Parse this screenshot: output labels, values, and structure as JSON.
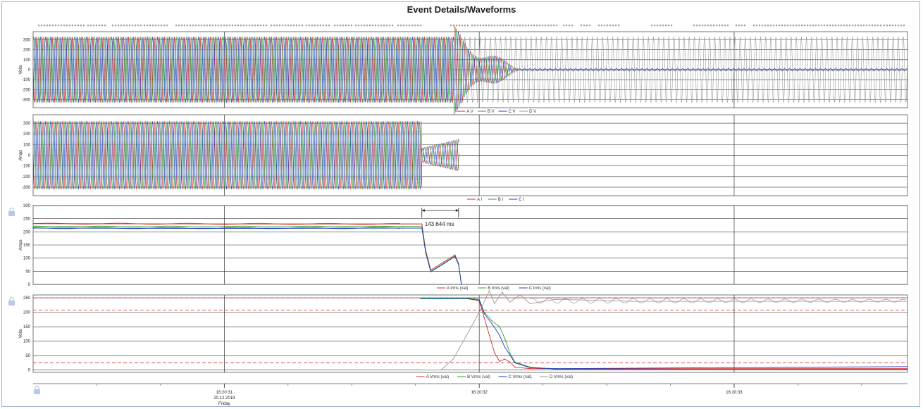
{
  "title": "Event Details/Waveforms",
  "colors": {
    "A": "#d62728",
    "B": "#2ca02c",
    "C": "#1f3fbf",
    "D": "#9a9a9a"
  },
  "x_axis": {
    "ticks": [
      {
        "t": 0.0,
        "lines": [
          "16:20:31",
          "20.12.2019",
          "Friday"
        ]
      },
      {
        "t": 1.0,
        "lines": [
          "16:20:32"
        ]
      },
      {
        "t": 2.0,
        "lines": [
          "16:20:33"
        ]
      }
    ]
  },
  "annotation": {
    "label": "143.644 ms",
    "t_start": 0.775,
    "t_end": 0.919
  },
  "chart_data": [
    {
      "type": "line",
      "panel": "voltage-waveforms",
      "ylabel": "Volts",
      "ylim": [
        -380,
        380
      ],
      "yticks": [
        300,
        200,
        100,
        0,
        -100,
        -200,
        -300
      ],
      "grid": true,
      "legend_placement": "bottom-center",
      "description_values": {
        "amplitude_pre_event": 330,
        "amplitude_post_event_D": 330,
        "event_start_t": 0.9,
        "collapse_end_t": 1.15
      },
      "series": [
        {
          "name": "A V",
          "color_key": "A"
        },
        {
          "name": "B V",
          "color_key": "B"
        },
        {
          "name": "C V",
          "color_key": "C"
        },
        {
          "name": "D V",
          "color_key": "D"
        }
      ]
    },
    {
      "type": "line",
      "panel": "current-waveforms",
      "ylabel": "Amps",
      "ylim": [
        -380,
        380
      ],
      "yticks": [
        300,
        200,
        100,
        0,
        -100,
        -200,
        -300
      ],
      "grid": true,
      "legend_placement": "bottom-center",
      "description_values": {
        "amplitude_pre_event": 320,
        "fault_start_t": 0.775,
        "fault_end_t": 0.919,
        "fault_amplitude": 150
      },
      "series": [
        {
          "name": "A I",
          "color_key": "A"
        },
        {
          "name": "B I",
          "color_key": "B"
        },
        {
          "name": "C I",
          "color_key": "C"
        }
      ]
    },
    {
      "type": "line",
      "panel": "current-rms",
      "ylabel": "Amps",
      "ylim": [
        0,
        300
      ],
      "yticks": [
        300,
        250,
        200,
        150,
        100,
        50,
        0
      ],
      "grid": true,
      "legend_placement": "bottom-center",
      "series": [
        {
          "name": "A Irms (val)",
          "color_key": "A",
          "x": [
            -0.75,
            0.0,
            0.7,
            0.775,
            0.79,
            0.81,
            0.86,
            0.905,
            0.919,
            0.93
          ],
          "y": [
            231,
            230,
            230,
            230,
            130,
            55,
            85,
            112,
            80,
            0
          ]
        },
        {
          "name": "B Irms (val)",
          "color_key": "B",
          "x": [
            -0.75,
            0.0,
            0.7,
            0.775,
            0.79,
            0.81,
            0.86,
            0.905,
            0.919,
            0.93
          ],
          "y": [
            220,
            219,
            220,
            220,
            125,
            50,
            80,
            108,
            78,
            0
          ]
        },
        {
          "name": "C Irms (val)",
          "color_key": "C",
          "x": [
            -0.75,
            0.0,
            0.7,
            0.775,
            0.79,
            0.81,
            0.86,
            0.905,
            0.919,
            0.93
          ],
          "y": [
            214,
            213,
            214,
            214,
            120,
            48,
            78,
            106,
            75,
            0
          ]
        }
      ]
    },
    {
      "type": "line",
      "panel": "voltage-rms",
      "ylabel": "Volts",
      "ylim": [
        -8,
        260
      ],
      "yticks": [
        250,
        200,
        150,
        100,
        50,
        0
      ],
      "grid": true,
      "legend_placement": "bottom-center",
      "thresholds": [
        {
          "y": 250,
          "style": "dashed",
          "color_key": "A"
        },
        {
          "y": 207,
          "style": "dashed",
          "color_key": "A"
        },
        {
          "y": 25,
          "style": "dashed",
          "color_key": "A"
        }
      ],
      "series": [
        {
          "name": "A Vrms (val)",
          "color_key": "A",
          "x": [
            0.77,
            0.95,
            1.0,
            1.02,
            1.04,
            1.06,
            1.08,
            1.1,
            1.12,
            1.14,
            1.2,
            1.3,
            2.68
          ],
          "y": [
            248,
            248,
            240,
            180,
            120,
            60,
            30,
            38,
            28,
            10,
            5,
            5,
            5
          ]
        },
        {
          "name": "B Vrms (val)",
          "color_key": "B",
          "x": [
            0.77,
            0.95,
            1.0,
            1.02,
            1.05,
            1.08,
            1.1,
            1.12,
            1.14,
            1.2,
            1.3,
            2.68
          ],
          "y": [
            249,
            249,
            245,
            200,
            170,
            150,
            110,
            60,
            28,
            10,
            3,
            3
          ]
        },
        {
          "name": "C Vrms (val)",
          "color_key": "C",
          "x": [
            0.77,
            0.95,
            1.0,
            1.02,
            1.05,
            1.08,
            1.1,
            1.14,
            1.2,
            1.3,
            2.68
          ],
          "y": [
            247,
            247,
            242,
            195,
            160,
            120,
            80,
            25,
            8,
            5,
            12
          ]
        },
        {
          "name": "D Vrms (val)",
          "color_key": "D",
          "x": [
            0.77,
            0.85,
            0.9,
            0.95,
            1.0,
            1.04,
            1.06,
            1.09,
            1.12,
            1.16,
            1.2,
            1.3,
            1.6,
            2.68
          ],
          "y": [
            0,
            0,
            40,
            120,
            200,
            275,
            230,
            270,
            235,
            260,
            230,
            245,
            238,
            238
          ]
        }
      ]
    }
  ]
}
